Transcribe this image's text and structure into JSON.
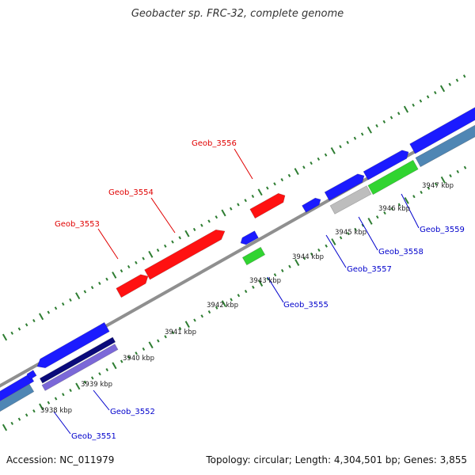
{
  "title": "Geobacter sp. FRC-32, complete genome",
  "footer": {
    "accession": "Accession: NC_011979",
    "summary": "Topology: circular; Length: 4,304,501 bp; Genes: 3,855"
  },
  "colors": {
    "strand_line": "#8f8f8f",
    "tick_green": "#2e7d32",
    "gene_red": "#ff1111",
    "gene_blue": "#1b1bff",
    "gene_navy": "#0a0a7a",
    "gene_purple": "#7b68d8",
    "gene_steel": "#4f86b4",
    "gene_green": "#31d431",
    "gene_gray": "#bdbdbd",
    "label_red": "#e00000",
    "label_blue": "#0000cc"
  },
  "coordinate_labels": [
    "3938 kbp",
    "3939 kbp",
    "3940 kbp",
    "3941 kbp",
    "3942 kbp",
    "3943 kbp",
    "3944 kbp",
    "3945 kbp",
    "3946 kbp",
    "3947 kbp"
  ],
  "labels_outer": [
    "Geob_3553",
    "Geob_3554",
    "Geob_3556"
  ],
  "labels_inner": [
    "Geob_3551",
    "Geob_3552",
    "Geob_3555",
    "Geob_3557",
    "Geob_3558",
    "Geob_3559"
  ]
}
